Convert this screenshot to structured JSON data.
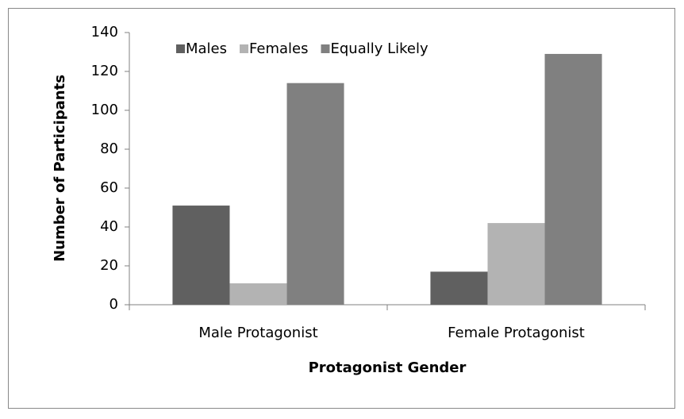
{
  "chart_data": {
    "type": "bar",
    "categories": [
      "Male Protagonist",
      "Female Protagonist"
    ],
    "series": [
      {
        "name": "Males",
        "color": "#606060",
        "values": [
          51,
          17
        ]
      },
      {
        "name": "Females",
        "color": "#b3b3b3",
        "values": [
          11,
          42
        ]
      },
      {
        "name": "Equally Likely",
        "color": "#808080",
        "values": [
          114,
          129
        ]
      }
    ],
    "x_label": "Protagonist Gender",
    "y_label": "Number of Participants",
    "ylim": [
      0,
      140
    ],
    "yticks": [
      0,
      20,
      40,
      60,
      80,
      100,
      120,
      140
    ],
    "grid": false,
    "legend": "top"
  }
}
